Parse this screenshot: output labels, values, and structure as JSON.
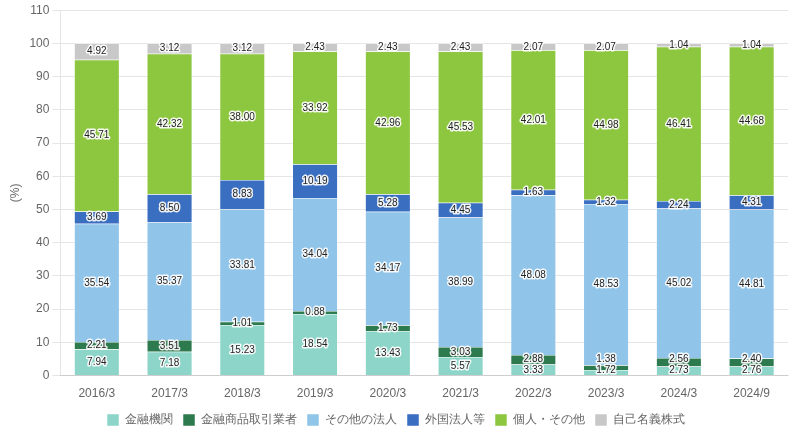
{
  "chart_data": {
    "type": "bar",
    "stacked": true,
    "data_labels": true,
    "ylabel": "(%)",
    "categories": [
      "2016/3",
      "2017/3",
      "2018/3",
      "2019/3",
      "2020/3",
      "2021/3",
      "2022/3",
      "2023/3",
      "2024/3",
      "2024/9"
    ],
    "series": [
      {
        "name": "金融機関",
        "color": "#8dd5c8",
        "values": [
          7.94,
          7.18,
          15.23,
          18.54,
          13.43,
          5.57,
          3.33,
          1.72,
          2.73,
          2.76
        ],
        "value_labels": [
          "7.94",
          "7.18",
          "15.23",
          "18.54",
          "13.43",
          "5.57",
          "3.33",
          "1.72",
          "2.73",
          "2.76"
        ]
      },
      {
        "name": "金融商品取引業者",
        "color": "#2d7a4f",
        "values": [
          2.21,
          3.51,
          1.01,
          0.88,
          1.73,
          3.03,
          2.88,
          1.38,
          2.56,
          2.4
        ],
        "value_labels": [
          "2.21",
          "3.51",
          "1.01",
          "0.88",
          "1.73",
          "3.03",
          "2.88",
          "1.38",
          "2.56",
          "2.40"
        ]
      },
      {
        "name": "その他の法人",
        "color": "#90c4e8",
        "values": [
          35.54,
          35.37,
          33.81,
          34.04,
          34.17,
          38.99,
          48.08,
          48.53,
          45.02,
          44.81
        ],
        "value_labels": [
          "35.54",
          "35.37",
          "33.81",
          "34.04",
          "34.17",
          "38.99",
          "48.08",
          "48.53",
          "45.02",
          "44.81"
        ]
      },
      {
        "name": "外国法人等",
        "color": "#3a6ec0",
        "values": [
          3.69,
          8.5,
          8.83,
          10.19,
          5.28,
          4.45,
          1.63,
          1.32,
          2.24,
          4.31
        ],
        "value_labels": [
          "3.69",
          "8.50",
          "8.83",
          "10.19",
          "5.28",
          "4.45",
          "1.63",
          "1.32",
          "2.24",
          "4.31"
        ]
      },
      {
        "name": "個人・その他",
        "color": "#8dc63f",
        "values": [
          45.71,
          42.32,
          38.0,
          33.92,
          42.96,
          45.53,
          42.01,
          44.98,
          46.41,
          44.68
        ],
        "value_labels": [
          "45.71",
          "42.32",
          "38.00",
          "33.92",
          "42.96",
          "45.53",
          "42.01",
          "44.98",
          "46.41",
          "44.68"
        ]
      },
      {
        "name": "自己名義株式",
        "color": "#c8c8c8",
        "values": [
          4.92,
          3.12,
          3.12,
          2.43,
          2.43,
          2.43,
          2.07,
          2.07,
          1.04,
          1.04
        ],
        "value_labels": [
          "4.92",
          "3.12",
          "3.12",
          "2.43",
          "2.43",
          "2.43",
          "2.07",
          "2.07",
          "1.04",
          "1.04"
        ]
      }
    ],
    "ylim": [
      0,
      110
    ],
    "yticks": [
      0,
      10,
      20,
      30,
      40,
      50,
      60,
      70,
      80,
      90,
      100,
      110
    ],
    "grid": true,
    "legend": "bottom"
  }
}
